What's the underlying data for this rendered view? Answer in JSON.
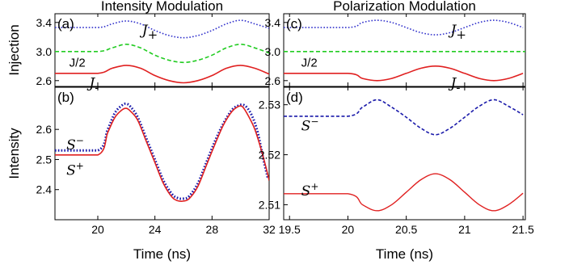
{
  "chart_data": [
    {
      "id": "a",
      "panel_label": "(a)",
      "type": "line",
      "title": "Intensity Modulation",
      "ylabel": "Injection",
      "xlim": [
        17,
        32
      ],
      "ylim": [
        2.52,
        3.52
      ],
      "yticks": [
        2.6,
        3.0,
        3.4
      ],
      "ytick_labels": [
        "2.6",
        "3.0",
        "3.4"
      ],
      "xticks": [
        20,
        24,
        28,
        32
      ],
      "series": [
        {
          "key": "jplus",
          "color": "#3333cc",
          "dash": "1.6,2.2",
          "x": [
            17,
            20,
            21,
            22,
            23,
            24,
            25,
            26,
            27,
            28,
            29,
            30,
            31,
            32
          ],
          "y": [
            3.33,
            3.33,
            3.38,
            3.42,
            3.38,
            3.29,
            3.22,
            3.19,
            3.22,
            3.29,
            3.38,
            3.43,
            3.38,
            3.32
          ]
        },
        {
          "key": "jhalf",
          "color": "#22cc22",
          "dash": "5,3",
          "x": [
            17,
            20,
            21,
            22,
            23,
            24,
            25,
            26,
            27,
            28,
            29,
            30,
            31,
            32
          ],
          "y": [
            3.0,
            3.0,
            3.05,
            3.1,
            3.05,
            2.95,
            2.88,
            2.85,
            2.88,
            2.95,
            3.05,
            3.1,
            3.05,
            2.98
          ]
        },
        {
          "key": "jminus",
          "color": "#e02020",
          "dash": "",
          "x": [
            17,
            20,
            21,
            22,
            23,
            24,
            25,
            26,
            27,
            28,
            29,
            30,
            31,
            32
          ],
          "y": [
            2.7,
            2.7,
            2.77,
            2.81,
            2.77,
            2.67,
            2.6,
            2.57,
            2.6,
            2.67,
            2.77,
            2.81,
            2.77,
            2.69
          ]
        }
      ],
      "annotations": [
        {
          "text": "J",
          "sub": "+",
          "x": 23.1,
          "y": 3.3
        },
        {
          "text": "J/2",
          "x": 18.0,
          "y": 2.86,
          "plain": true
        },
        {
          "text": "J",
          "sub": "-",
          "x": 19.4,
          "y": 2.57
        }
      ]
    },
    {
      "id": "b",
      "panel_label": "(b)",
      "type": "line",
      "xlabel": "Time (ns)",
      "ylabel": "Intensity",
      "xlim": [
        17,
        32
      ],
      "ylim": [
        2.3,
        2.74
      ],
      "yticks": [
        2.4,
        2.5,
        2.6
      ],
      "ytick_labels": [
        "2.4",
        "2.5",
        "2.6"
      ],
      "xticks": [
        20,
        24,
        28,
        32
      ],
      "xtick_labels": [
        "20",
        "24",
        "28",
        "32"
      ],
      "series": [
        {
          "key": "sminus",
          "color": "#1a1aaa",
          "dash": "1.6,2.2",
          "width": 3,
          "x": [
            17,
            20,
            20.7,
            21.2,
            21.7,
            22.0,
            22.3,
            22.8,
            23.4,
            24.0,
            24.6,
            25.2,
            25.6,
            26.0,
            26.4,
            27.0,
            27.6,
            28.2,
            28.8,
            29.4,
            29.8,
            30.1,
            30.4,
            30.8,
            31.2,
            31.6,
            31.9
          ],
          "y": [
            2.53,
            2.53,
            2.6,
            2.655,
            2.68,
            2.685,
            2.675,
            2.64,
            2.57,
            2.5,
            2.43,
            2.385,
            2.372,
            2.37,
            2.378,
            2.42,
            2.49,
            2.56,
            2.62,
            2.665,
            2.678,
            2.682,
            2.675,
            2.645,
            2.59,
            2.5,
            2.44
          ]
        },
        {
          "key": "splus",
          "color": "#e02020",
          "dash": "",
          "width": 1.6,
          "x": [
            17,
            20,
            20.7,
            21.2,
            21.7,
            22.0,
            22.3,
            22.8,
            23.4,
            24.0,
            24.6,
            25.2,
            25.6,
            26.0,
            26.4,
            27.0,
            27.6,
            28.2,
            28.8,
            29.4,
            29.8,
            30.0,
            30.2,
            30.6,
            31.0,
            31.4,
            31.8,
            32.0
          ],
          "y": [
            2.515,
            2.515,
            2.59,
            2.64,
            2.665,
            2.67,
            2.66,
            2.63,
            2.56,
            2.49,
            2.42,
            2.375,
            2.363,
            2.362,
            2.37,
            2.41,
            2.48,
            2.55,
            2.615,
            2.66,
            2.675,
            2.678,
            2.672,
            2.64,
            2.6,
            2.54,
            2.47,
            2.43
          ]
        }
      ],
      "annotations": [
        {
          "text": "S",
          "sup": "−",
          "x": 17.8,
          "y": 2.55
        },
        {
          "text": "S",
          "sup": "+",
          "x": 17.8,
          "y": 2.465
        }
      ]
    },
    {
      "id": "c",
      "panel_label": "(c)",
      "type": "line",
      "title": "Polarization Modulation",
      "xlim": [
        19.45,
        21.52
      ],
      "ylim": [
        2.52,
        3.52
      ],
      "yticks": [
        2.6,
        3.0,
        3.4
      ],
      "ytick_labels": [
        "2.6",
        "3.0",
        "3.4"
      ],
      "xticks": [
        19.5,
        20,
        20.5,
        21,
        21.5
      ],
      "series": [
        {
          "key": "jplus",
          "color": "#3333cc",
          "dash": "1.6,2.2",
          "x": [
            19.45,
            20.0,
            20.125,
            20.25,
            20.375,
            20.5,
            20.625,
            20.75,
            20.875,
            21.0,
            21.125,
            21.25,
            21.375,
            21.5
          ],
          "y": [
            3.33,
            3.33,
            3.4,
            3.43,
            3.4,
            3.33,
            3.26,
            3.23,
            3.26,
            3.33,
            3.4,
            3.43,
            3.4,
            3.33
          ]
        },
        {
          "key": "jhalf",
          "color": "#22cc22",
          "dash": "5,3",
          "x": [
            19.45,
            21.52
          ],
          "y": [
            3.0,
            3.0
          ]
        },
        {
          "key": "jminus",
          "color": "#e02020",
          "dash": "",
          "x": [
            19.45,
            20.0,
            20.125,
            20.25,
            20.375,
            20.5,
            20.625,
            20.75,
            20.875,
            21.0,
            21.125,
            21.25,
            21.375,
            21.5
          ],
          "y": [
            2.7,
            2.7,
            2.63,
            2.6,
            2.63,
            2.7,
            2.77,
            2.8,
            2.77,
            2.7,
            2.63,
            2.6,
            2.63,
            2.7
          ]
        }
      ],
      "annotations": [
        {
          "text": "J",
          "sub": "+",
          "x": 20.88,
          "y": 3.3
        },
        {
          "text": "J/2",
          "x": 19.6,
          "y": 2.86,
          "plain": true
        },
        {
          "text": "J",
          "sub": "-",
          "x": 20.88,
          "y": 2.57
        }
      ]
    },
    {
      "id": "d",
      "panel_label": "(d)",
      "type": "line",
      "xlabel": "Time (ns)",
      "xlim": [
        19.45,
        21.52
      ],
      "ylim": [
        2.507,
        2.5335
      ],
      "yticks": [
        2.51,
        2.52,
        2.53
      ],
      "ytick_labels": [
        "2.51",
        "2.52",
        "2.53"
      ],
      "xticks": [
        19.5,
        20,
        20.5,
        21,
        21.5
      ],
      "xtick_labels": [
        "19.5",
        "20",
        "20.5",
        "21",
        "21.5"
      ],
      "series": [
        {
          "key": "sminus",
          "color": "#1a1aaa",
          "dash": "4,2.5",
          "width": 1.6,
          "x": [
            19.45,
            20.0,
            20.125,
            20.25,
            20.375,
            20.5,
            20.625,
            20.75,
            20.875,
            21.0,
            21.125,
            21.25,
            21.375,
            21.5
          ],
          "y": [
            2.5277,
            2.5277,
            2.5295,
            2.531,
            2.5295,
            2.5275,
            2.5253,
            2.524,
            2.5253,
            2.5275,
            2.5297,
            2.531,
            2.5297,
            2.528
          ]
        },
        {
          "key": "splus",
          "color": "#e02020",
          "dash": "",
          "width": 1.4,
          "x": [
            19.45,
            20.0,
            20.125,
            20.25,
            20.375,
            20.5,
            20.625,
            20.75,
            20.875,
            21.0,
            21.125,
            21.25,
            21.375,
            21.5
          ],
          "y": [
            2.5122,
            2.5122,
            2.51,
            2.5088,
            2.51,
            2.5125,
            2.515,
            2.5162,
            2.515,
            2.5125,
            2.51,
            2.5088,
            2.51,
            2.5123
          ]
        }
      ],
      "annotations": [
        {
          "text": "S",
          "sup": "−",
          "x": 19.6,
          "y": 2.5258
        },
        {
          "text": "S",
          "sup": "+",
          "x": 19.6,
          "y": 2.5128
        }
      ]
    }
  ]
}
